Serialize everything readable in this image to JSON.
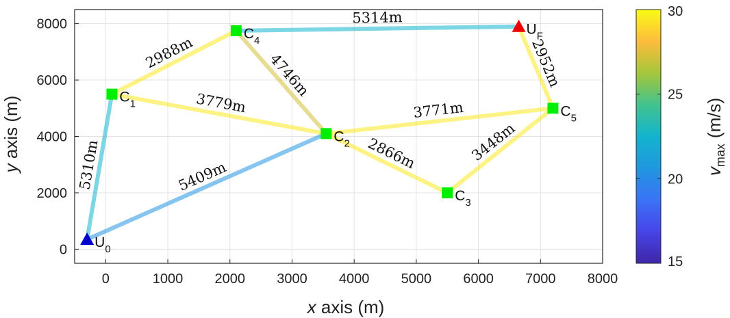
{
  "chart_data": {
    "type": "network",
    "xlabel": {
      "var": "x",
      "rest": " axis (m)"
    },
    "ylabel": {
      "var": "y",
      "rest": " axis (m)"
    },
    "xlim": [
      -500,
      8000
    ],
    "ylim": [
      -500,
      8500
    ],
    "xticks": [
      0,
      1000,
      2000,
      3000,
      4000,
      5000,
      6000,
      7000,
      8000
    ],
    "yticks": [
      0,
      2000,
      4000,
      6000,
      8000
    ],
    "grid": true,
    "colorbar": {
      "label_main": "v",
      "label_sub": "max",
      "label_unit": "(m/s)",
      "min": 15,
      "max": 30,
      "ticks": [
        15,
        20,
        25,
        30
      ],
      "colormap": "parula"
    },
    "nodes": [
      {
        "id": "U0",
        "base": "U",
        "sub": "0",
        "x": -300,
        "y": 350,
        "shape": "triangle",
        "color": "#0000cc"
      },
      {
        "id": "C1",
        "base": "C",
        "sub": "1",
        "x": 100,
        "y": 5500,
        "shape": "square",
        "color": "#00ee00"
      },
      {
        "id": "C2",
        "base": "C",
        "sub": "2",
        "x": 3550,
        "y": 4100,
        "shape": "square",
        "color": "#00ee00"
      },
      {
        "id": "C3",
        "base": "C",
        "sub": "3",
        "x": 5500,
        "y": 2000,
        "shape": "square",
        "color": "#00ee00"
      },
      {
        "id": "C4",
        "base": "C",
        "sub": "4",
        "x": 2100,
        "y": 7750,
        "shape": "square",
        "color": "#00ee00"
      },
      {
        "id": "C5",
        "base": "C",
        "sub": "5",
        "x": 7200,
        "y": 5000,
        "shape": "square",
        "color": "#00ee00"
      },
      {
        "id": "UF",
        "base": "U",
        "sub": "F",
        "x": 6650,
        "y": 7900,
        "shape": "triangle",
        "color": "#ee0000"
      }
    ],
    "edges": [
      {
        "from": "U0",
        "to": "C1",
        "length": "5310m",
        "vmax": 22.5
      },
      {
        "from": "U0",
        "to": "C2",
        "length": "5409m",
        "vmax": 20.5
      },
      {
        "from": "C1",
        "to": "C4",
        "length": "2988m",
        "vmax": 29.5
      },
      {
        "from": "C1",
        "to": "C2",
        "length": "3779m",
        "vmax": 29.5
      },
      {
        "from": "C4",
        "to": "C2",
        "length": "4746m",
        "vmax": 27.2
      },
      {
        "from": "C4",
        "to": "UF",
        "length": "5314m",
        "vmax": 22.5
      },
      {
        "from": "C2",
        "to": "C5",
        "length": "3771m",
        "vmax": 29.5
      },
      {
        "from": "C2",
        "to": "C3",
        "length": "2866m",
        "vmax": 29.5
      },
      {
        "from": "C3",
        "to": "C5",
        "length": "3448m",
        "vmax": 29.5
      },
      {
        "from": "UF",
        "to": "C5",
        "length": "2952m",
        "vmax": 29.5
      }
    ]
  }
}
